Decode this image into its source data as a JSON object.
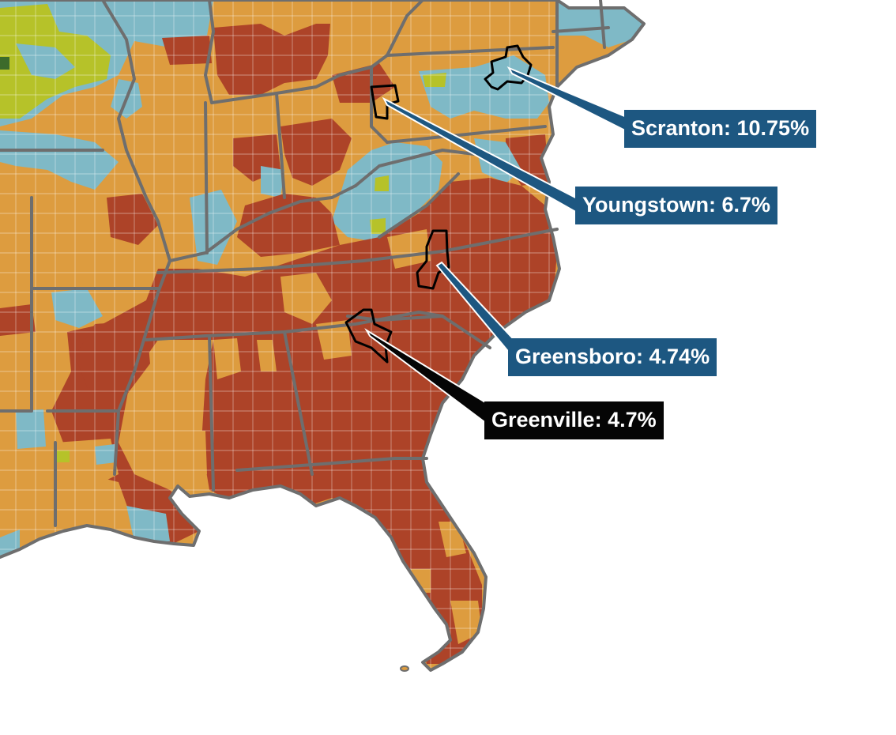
{
  "colors": {
    "background": "#ffffff",
    "tier_high": "#ad4328",
    "tier_mid": "#dd9c3f",
    "tier_low": "#7fb9c6",
    "tier_lowest": "#b6c229",
    "tier_extreme": "#3c6b2b",
    "state_border": "#6e6e6e",
    "county_border": "#ffffff",
    "label_blue": "#1d5781",
    "label_dark": "#050505"
  },
  "callouts": [
    {
      "id": "scranton",
      "label": "Scranton: 10.75%",
      "style": "blue"
    },
    {
      "id": "youngstown",
      "label": "Youngstown: 6.7%",
      "style": "blue"
    },
    {
      "id": "greensboro",
      "label": "Greensboro: 4.74%",
      "style": "blue"
    },
    {
      "id": "greenville",
      "label": "Greenville: 4.7%",
      "style": "dark"
    }
  ]
}
